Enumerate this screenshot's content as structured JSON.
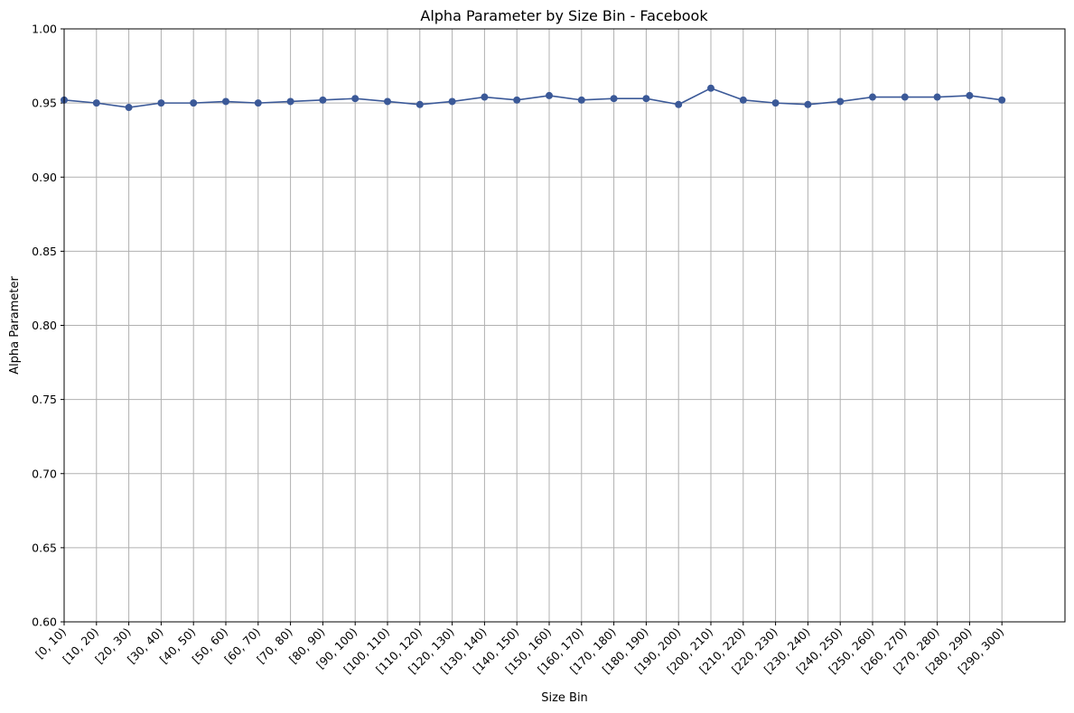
{
  "chart_data": {
    "type": "line",
    "title": "Alpha Parameter by Size Bin - Facebook",
    "xlabel": "Size Bin",
    "ylabel": "Alpha Parameter",
    "ylim": [
      0.6,
      1.0
    ],
    "yticks": [
      "0.60",
      "0.65",
      "0.70",
      "0.75",
      "0.80",
      "0.85",
      "0.90",
      "0.95",
      "1.00"
    ],
    "grid": true,
    "categories": [
      "[0, 10)",
      "[10, 20)",
      "[20, 30)",
      "[30, 40)",
      "[40, 50)",
      "[50, 60)",
      "[60, 70)",
      "[70, 80)",
      "[80, 90)",
      "[90, 100)",
      "[100, 110)",
      "[110, 120)",
      "[120, 130)",
      "[130, 140)",
      "[140, 150)",
      "[150, 160)",
      "[160, 170)",
      "[170, 180)",
      "[180, 190)",
      "[190, 200)",
      "[200, 210)",
      "[210, 220)",
      "[220, 230)",
      "[230, 240)",
      "[240, 250)",
      "[250, 260)",
      "[260, 270)",
      "[270, 280)",
      "[280, 290)",
      "[290, 300)"
    ],
    "series": [
      {
        "color": "#3b5998",
        "marker": "circle",
        "values": [
          0.952,
          0.95,
          0.947,
          0.95,
          0.95,
          0.951,
          0.95,
          0.951,
          0.952,
          0.953,
          0.951,
          0.949,
          0.951,
          0.954,
          0.952,
          0.955,
          0.952,
          0.953,
          0.953,
          0.949,
          0.96,
          0.952,
          0.95,
          0.949,
          0.951,
          0.954,
          0.954,
          0.954,
          0.955,
          0.952
        ]
      }
    ]
  }
}
